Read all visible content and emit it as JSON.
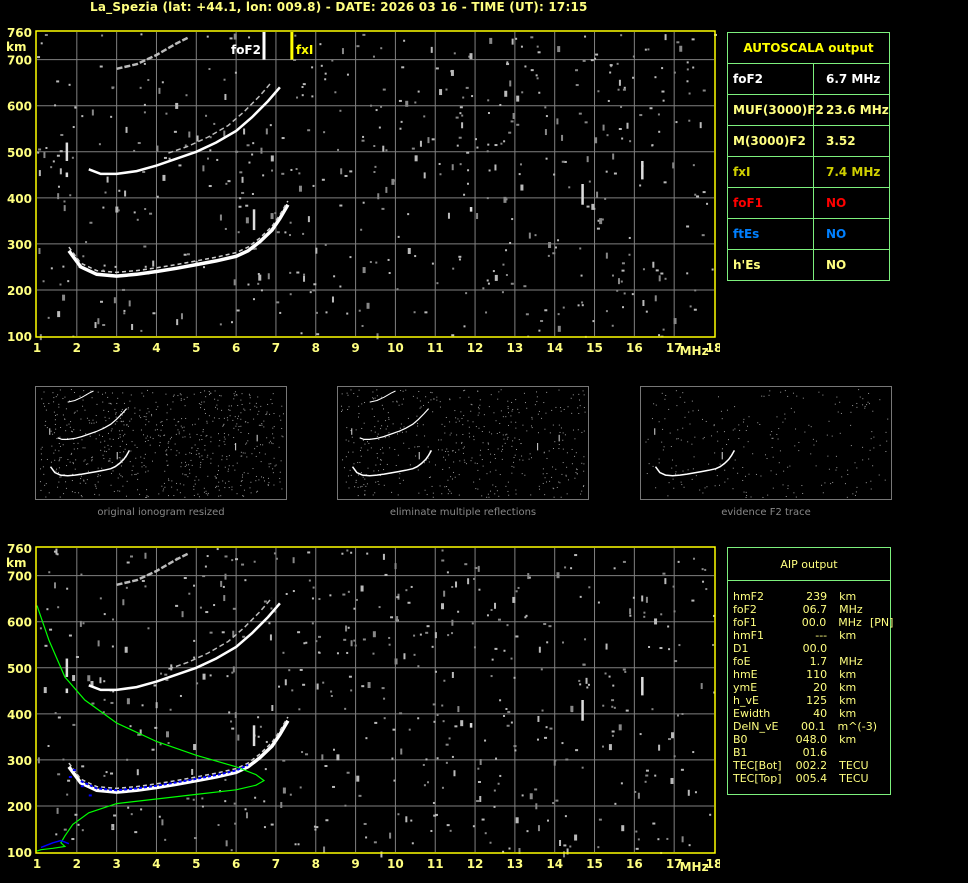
{
  "title": "La_Spezia (lat: +44.1, lon: 009.8) - DATE: 2026 03 16 - TIME (UT): 17:15",
  "axes": {
    "y_ticks": [
      "760",
      "700",
      "600",
      "500",
      "400",
      "300",
      "200",
      "100"
    ],
    "y_unit": "km",
    "x_ticks": [
      "1",
      "2",
      "3",
      "4",
      "5",
      "6",
      "7",
      "8",
      "9",
      "10",
      "11",
      "12",
      "13",
      "14",
      "15",
      "16",
      "17",
      "18"
    ],
    "x_unit": "MHz"
  },
  "markers": {
    "foF2": {
      "label": "foF2",
      "freq": 6.7,
      "color": "#ffffff"
    },
    "fxI": {
      "label": "fxI",
      "freq": 7.4,
      "color": "#ffff00"
    }
  },
  "colors": {
    "axis": "#ffff00",
    "grid": "#808080",
    "table_border": "#7df07d",
    "profile": "#00ff00",
    "profile_points": "#0000ff"
  },
  "autoscala": {
    "title": "AUTOSCALA output",
    "rows": [
      {
        "label": "foF2",
        "value": "6.7 MHz",
        "color": "#ffffff"
      },
      {
        "label": "MUF(3000)F2",
        "value": "23.6 MHz",
        "color": "#ffff80"
      },
      {
        "label": "M(3000)F2",
        "value": "3.52",
        "color": "#ffff80"
      },
      {
        "label": "fxI",
        "value": "7.4 MHz",
        "color": "#d0d000"
      },
      {
        "label": "foF1",
        "value": "NO",
        "color": "#ff0000"
      },
      {
        "label": "ftEs",
        "value": "NO",
        "color": "#0080ff"
      },
      {
        "label": "h'Es",
        "value": "NO",
        "color": "#ffff80"
      }
    ]
  },
  "thumbnails": [
    {
      "caption": "original ionogram resized"
    },
    {
      "caption": "eliminate multiple reflections"
    },
    {
      "caption": "evidence F2 trace"
    }
  ],
  "aip": {
    "title": "AIP output",
    "rows": [
      [
        "hmF2",
        "239",
        "km",
        ""
      ],
      [
        "foF2",
        "06.7",
        "MHz",
        ""
      ],
      [
        "foF1",
        "00.0",
        "MHz",
        "[PN]"
      ],
      [
        "hmF1",
        "---",
        "km",
        ""
      ],
      [
        "D1",
        "00.0",
        "",
        ""
      ],
      [
        "foE",
        "1.7",
        "MHz",
        ""
      ],
      [
        "hmE",
        "110",
        "km",
        ""
      ],
      [
        "ymE",
        "20",
        "km",
        ""
      ],
      [
        "h_vE",
        "125",
        "km",
        ""
      ],
      [
        "Ewidth",
        "40",
        "km",
        ""
      ],
      [
        "DelN_vE",
        "00.1",
        "m^(-3)",
        ""
      ],
      [
        "B0",
        "048.0",
        "km",
        ""
      ],
      [
        "B1",
        "01.6",
        "",
        ""
      ],
      [
        "TEC[Bot]",
        "002.2",
        "TECU",
        ""
      ],
      [
        "TEC[Top]",
        "005.4",
        "TECU",
        ""
      ]
    ]
  }
}
